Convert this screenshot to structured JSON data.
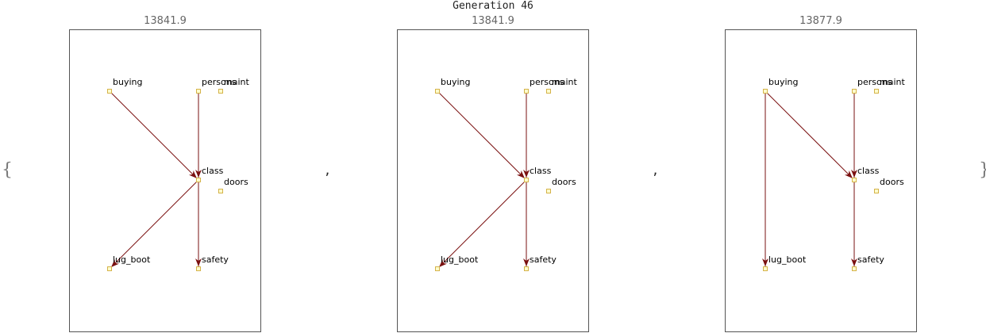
{
  "title": "Generation 46",
  "open_brace": "{",
  "close_brace": "}",
  "separator": ",",
  "colors": {
    "edge": "#7a1010",
    "node_fill": "#ffffcc",
    "node_stroke": "#d4b24a",
    "frame": "#555555"
  },
  "panels": [
    {
      "score": "13841.9",
      "nodes": [
        {
          "id": "buying",
          "label": "buying"
        },
        {
          "id": "persons",
          "label": "persons"
        },
        {
          "id": "maint",
          "label": "maint"
        },
        {
          "id": "class",
          "label": "class"
        },
        {
          "id": "doors",
          "label": "doors"
        },
        {
          "id": "lug_boot",
          "label": "lug_boot"
        },
        {
          "id": "safety",
          "label": "safety"
        }
      ],
      "edges": [
        {
          "from": "buying",
          "to": "class"
        },
        {
          "from": "persons",
          "to": "class"
        },
        {
          "from": "class",
          "to": "lug_boot"
        },
        {
          "from": "class",
          "to": "safety"
        }
      ]
    },
    {
      "score": "13841.9",
      "nodes": [
        {
          "id": "buying",
          "label": "buying"
        },
        {
          "id": "persons",
          "label": "persons"
        },
        {
          "id": "maint",
          "label": "maint"
        },
        {
          "id": "class",
          "label": "class"
        },
        {
          "id": "doors",
          "label": "doors"
        },
        {
          "id": "lug_boot",
          "label": "lug_boot"
        },
        {
          "id": "safety",
          "label": "safety"
        }
      ],
      "edges": [
        {
          "from": "buying",
          "to": "class"
        },
        {
          "from": "persons",
          "to": "class"
        },
        {
          "from": "class",
          "to": "lug_boot"
        },
        {
          "from": "class",
          "to": "safety"
        }
      ]
    },
    {
      "score": "13877.9",
      "nodes": [
        {
          "id": "buying",
          "label": "buying"
        },
        {
          "id": "persons",
          "label": "persons"
        },
        {
          "id": "maint",
          "label": "maint"
        },
        {
          "id": "class",
          "label": "class"
        },
        {
          "id": "doors",
          "label": "doors"
        },
        {
          "id": "lug_boot",
          "label": "lug_boot"
        },
        {
          "id": "safety",
          "label": "safety"
        }
      ],
      "edges": [
        {
          "from": "buying",
          "to": "lug_boot"
        },
        {
          "from": "buying",
          "to": "class"
        },
        {
          "from": "persons",
          "to": "class"
        },
        {
          "from": "class",
          "to": "safety"
        }
      ]
    }
  ]
}
